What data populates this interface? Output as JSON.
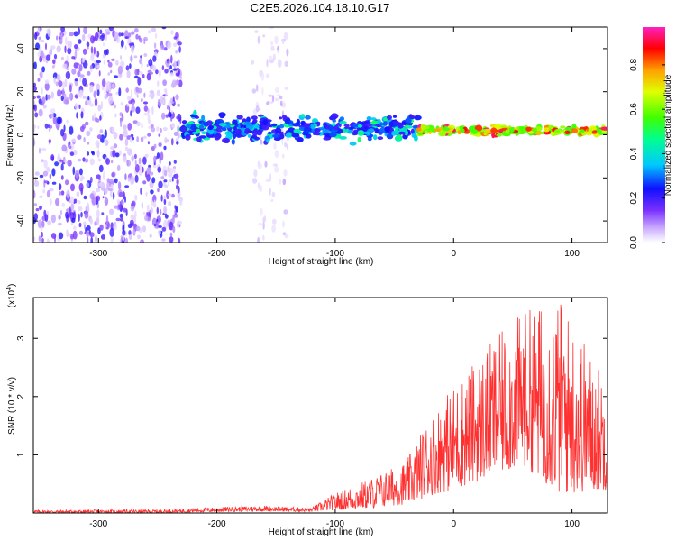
{
  "figure_title": "C2E5.2026.104.18.10.G17",
  "chart_data": [
    {
      "type": "heatmap",
      "title": "",
      "xlabel": "Height of straight line (km)",
      "ylabel": "Frequency (Hz)",
      "xlim": [
        -355,
        130
      ],
      "ylim": [
        -50,
        50
      ],
      "xticks": [
        -300,
        -200,
        -100,
        0,
        100
      ],
      "yticks": [
        -40,
        -20,
        0,
        20,
        40
      ],
      "colorbar": {
        "label": "Normalized spectral amplitude",
        "range": [
          0.0,
          0.97
        ],
        "ticks": [
          0.0,
          0.2,
          0.4,
          0.6,
          0.8
        ],
        "colormap": "white-purple-blue-cyan-green-yellow-red-magenta"
      },
      "regions": [
        {
          "x_range": [
            -355,
            -230
          ],
          "freq_range": [
            -50,
            50
          ],
          "amplitude": [
            0.03,
            0.25
          ],
          "kind": "broadband scattered noise"
        },
        {
          "x_range": [
            -170,
            -140
          ],
          "freq_range": [
            -50,
            50
          ],
          "amplitude": [
            0.02,
            0.08
          ],
          "kind": "faint broadband noise"
        },
        {
          "x_range": [
            -230,
            -30
          ],
          "freq_center": 3,
          "freq_half_width": 8,
          "amplitude": [
            0.2,
            0.5
          ],
          "kind": "tone band"
        },
        {
          "x_range": [
            -30,
            130
          ],
          "freq_center": 2,
          "freq_half_width": 3,
          "amplitude": [
            0.55,
            0.95
          ],
          "kind": "narrow strong tone"
        }
      ]
    },
    {
      "type": "line",
      "title": "",
      "xlabel": "Height of straight line (km)",
      "ylabel": "SNR (10 * v/v)",
      "y_scale_label": "(x10",
      "y_scale_exp": "4",
      "y_scale_close": ")",
      "xlim": [
        -355,
        130
      ],
      "ylim": [
        0,
        3.7
      ],
      "xticks": [
        -300,
        -200,
        -100,
        0,
        100
      ],
      "yticks": [
        1,
        2,
        3
      ],
      "series": [
        {
          "color": "#ff3030",
          "x_range": [
            -355,
            130
          ],
          "envelope": [
            {
              "x": -355,
              "lo": 0.0,
              "hi": 0.05
            },
            {
              "x": -250,
              "lo": 0.0,
              "hi": 0.06
            },
            {
              "x": -200,
              "lo": 0.02,
              "hi": 0.1
            },
            {
              "x": -160,
              "lo": 0.03,
              "hi": 0.13
            },
            {
              "x": -120,
              "lo": 0.02,
              "hi": 0.09
            },
            {
              "x": -100,
              "lo": 0.05,
              "hi": 0.35
            },
            {
              "x": -70,
              "lo": 0.08,
              "hi": 0.6
            },
            {
              "x": -40,
              "lo": 0.15,
              "hi": 0.9
            },
            {
              "x": -20,
              "lo": 0.3,
              "hi": 1.7
            },
            {
              "x": 0,
              "lo": 0.4,
              "hi": 2.2
            },
            {
              "x": 30,
              "lo": 0.6,
              "hi": 2.9
            },
            {
              "x": 60,
              "lo": 0.8,
              "hi": 3.5
            },
            {
              "x": 90,
              "lo": 0.3,
              "hi": 3.7
            },
            {
              "x": 130,
              "lo": 0.4,
              "hi": 2.3
            }
          ]
        }
      ]
    }
  ]
}
